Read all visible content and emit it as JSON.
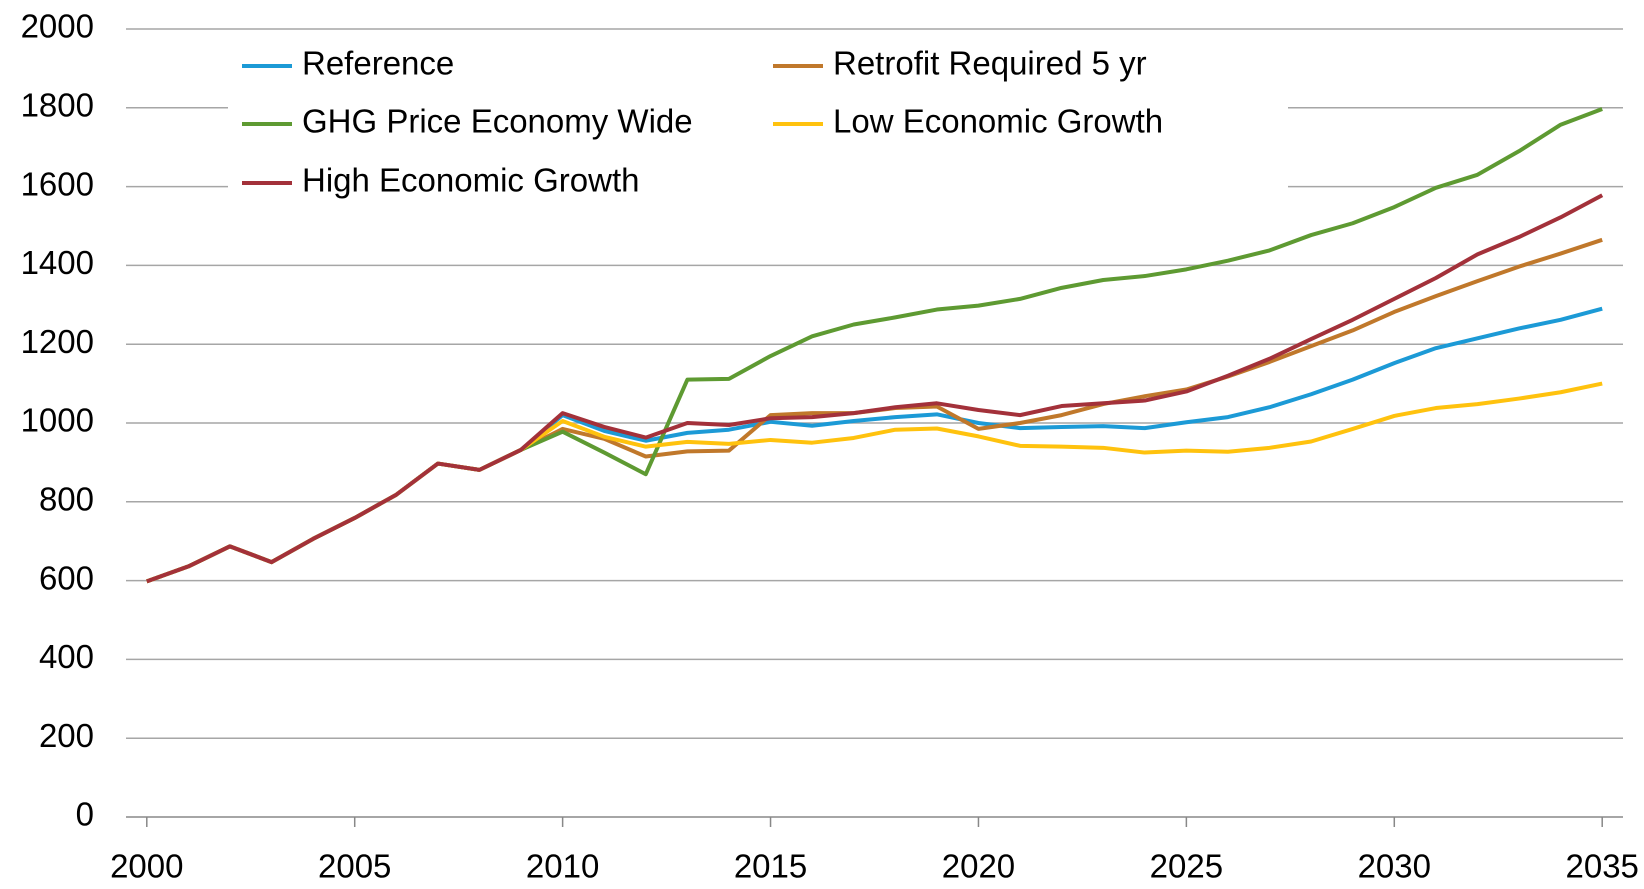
{
  "chart_data": {
    "type": "line",
    "x": [
      2000,
      2001,
      2002,
      2003,
      2004,
      2005,
      2006,
      2007,
      2008,
      2009,
      2010,
      2011,
      2012,
      2013,
      2014,
      2015,
      2016,
      2017,
      2018,
      2019,
      2020,
      2021,
      2022,
      2023,
      2024,
      2025,
      2026,
      2027,
      2028,
      2029,
      2030,
      2031,
      2032,
      2033,
      2034,
      2035
    ],
    "xlim": [
      1999.5,
      2035.5
    ],
    "xticks": [
      2000,
      2005,
      2010,
      2015,
      2020,
      2025,
      2030,
      2035
    ],
    "ylim": [
      0,
      2000
    ],
    "yticks": [
      0,
      200,
      400,
      600,
      800,
      1000,
      1200,
      1400,
      1600,
      1800,
      2000
    ],
    "grid": true,
    "legend": "top-left",
    "series": [
      {
        "name": "Reference",
        "color": "#1c9ad6",
        "values": [
          598,
          636,
          687,
          647,
          706,
          759,
          818,
          897,
          881,
          932,
          1020,
          980,
          955,
          975,
          983,
          1003,
          993,
          1005,
          1015,
          1022,
          1000,
          987,
          990,
          992,
          987,
          1002,
          1015,
          1040,
          1073,
          1110,
          1152,
          1190,
          1215,
          1240,
          1262,
          1290
        ]
      },
      {
        "name": "Retrofit Required 5 yr",
        "color": "#c0782b",
        "values": [
          598,
          636,
          687,
          647,
          706,
          759,
          818,
          897,
          881,
          932,
          985,
          960,
          915,
          928,
          930,
          1020,
          1025,
          1025,
          1038,
          1042,
          985,
          1000,
          1020,
          1048,
          1068,
          1085,
          1118,
          1155,
          1195,
          1235,
          1282,
          1322,
          1360,
          1397,
          1430,
          1465
        ]
      },
      {
        "name": "GHG Price Economy Wide",
        "color": "#5e9a32",
        "values": [
          598,
          636,
          687,
          647,
          706,
          759,
          818,
          897,
          881,
          932,
          978,
          925,
          870,
          1110,
          1112,
          1170,
          1220,
          1250,
          1268,
          1288,
          1298,
          1315,
          1343,
          1363,
          1373,
          1390,
          1412,
          1438,
          1477,
          1507,
          1548,
          1597,
          1630,
          1690,
          1757,
          1797
        ]
      },
      {
        "name": "Low Economic Growth",
        "color": "#ffc20e",
        "values": [
          598,
          636,
          687,
          647,
          706,
          759,
          818,
          897,
          881,
          932,
          1005,
          965,
          940,
          952,
          947,
          957,
          950,
          962,
          983,
          986,
          966,
          942,
          940,
          937,
          925,
          930,
          927,
          937,
          953,
          985,
          1018,
          1038,
          1048,
          1062,
          1078,
          1100
        ]
      },
      {
        "name": "High Economic Growth",
        "color": "#a3313a",
        "values": [
          598,
          636,
          687,
          647,
          706,
          759,
          818,
          897,
          881,
          932,
          1025,
          990,
          963,
          1000,
          995,
          1012,
          1015,
          1025,
          1040,
          1050,
          1033,
          1020,
          1043,
          1050,
          1057,
          1080,
          1120,
          1163,
          1213,
          1262,
          1315,
          1368,
          1428,
          1472,
          1522,
          1578
        ]
      }
    ]
  }
}
